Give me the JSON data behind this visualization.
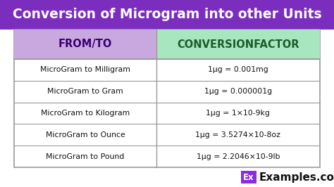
{
  "title": "Conversion of Microgram into other Units",
  "title_bg": "#7B2DBE",
  "title_color": "#FFFFFF",
  "header_col1": "FROM/TO",
  "header_col2": "CONVERSIONFACTOR",
  "header_col1_bg": "#C9A8E0",
  "header_col2_bg": "#A8E6C0",
  "border_color": "#999999",
  "rows": [
    [
      "MicroGram to Milligram",
      "1μg = 0.001mg"
    ],
    [
      "MicroGram to Gram",
      "1μg = 0.000001g"
    ],
    [
      "MicroGram to Kilogram",
      "1μg = 1×10-9kg"
    ],
    [
      "MicroGram to Ounce",
      "1μg = 3.5274×10-8oz"
    ],
    [
      "MicroGram to Pound",
      "1μg = 2.2046×10-9lb"
    ]
  ],
  "row_text_color": "#111111",
  "header_col1_text_color": "#3A006F",
  "header_col2_text_color": "#1A5C2A",
  "watermark_bg": "#8B2BE2",
  "watermark_text": "Ex",
  "watermark_text_color": "#FFFFFF",
  "site_text": "Examples.com",
  "site_text_color": "#111111",
  "fig_w": 4.74,
  "fig_h": 2.66,
  "dpi": 100
}
